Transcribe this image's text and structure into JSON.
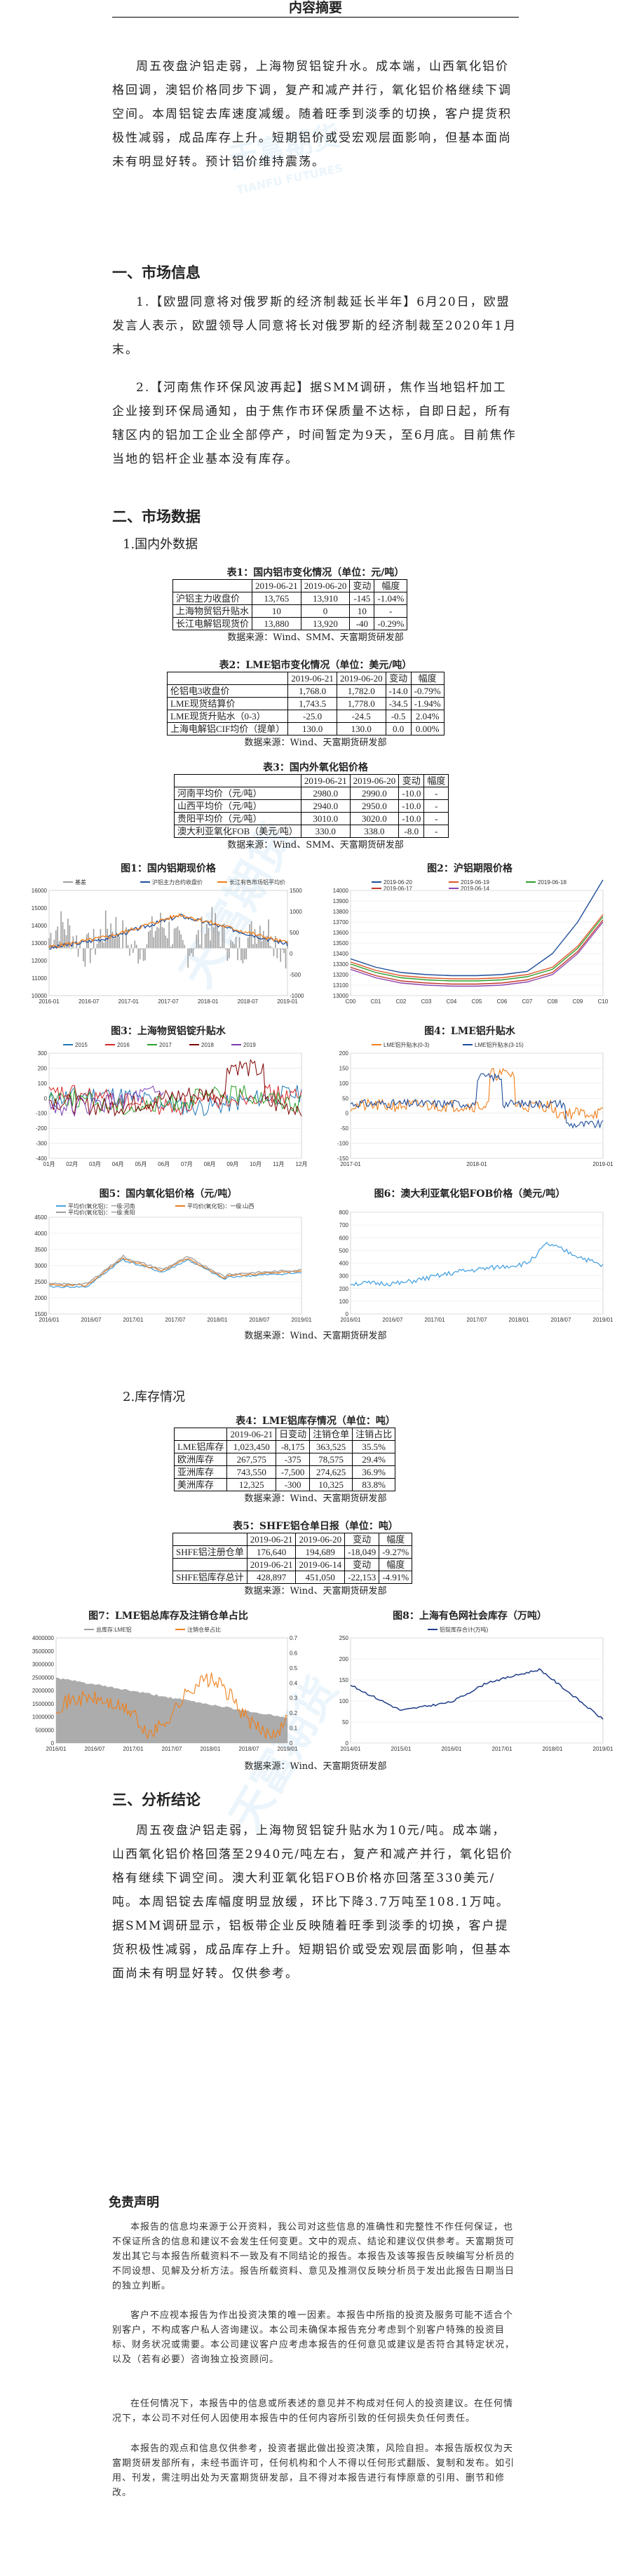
{
  "header": {
    "title": "内容摘要"
  },
  "summary": "周五夜盘沪铝走弱，上海物贸铝锭升水。成本端，山西氧化铝价格回调，澳铝价格同步下调，复产和减产并行，氧化铝价格继续下调空间。本周铝锭去库速度减缓。随着旺季到淡季的切换，客户提货积极性减弱，成品库存上升。短期铝价或受宏观层面影响，但基本面尚未有明显好转。预计铝价维持震荡。",
  "watermark": {
    "brand": "天富期货",
    "en": "TIANFU FUTURES"
  },
  "sec1": {
    "title": "一、市场信息",
    "items": [
      "1.【欧盟同意将对俄罗斯的经济制裁延长半年】6月20日，欧盟发言人表示，欧盟领导人同意将长对俄罗斯的经济制裁至2020年1月末。",
      "2.【河南焦作环保风波再起】据SMM调研，焦作当地铝杆加工企业接到环保局通知，由于焦作市环保质量不达标，自即日起，所有辖区内的铝加工企业全部停产，时间暂定为9天，至6月底。目前焦作当地的铝杆企业基本没有库存。"
    ]
  },
  "sec2": {
    "title": "二、市场数据",
    "sub1": "1.国内外数据",
    "sub2": "2.库存情况"
  },
  "table1": {
    "caption": "表1：国内铝市变化情况（单位：元/吨）",
    "header": [
      "",
      "2019-06-21",
      "2019-06-20",
      "变动",
      "幅度"
    ],
    "rows": [
      [
        "沪铝主力收盘价",
        "13,765",
        "13,910",
        "-145",
        "-1.04%"
      ],
      [
        "上海物贸铝升贴水",
        "10",
        "0",
        "10",
        "-"
      ],
      [
        "长江电解铝现货价",
        "13,880",
        "13,920",
        "-40",
        "-0.29%"
      ]
    ],
    "source": "数据来源：Wind、SMM、天富期货研发部"
  },
  "table2": {
    "caption": "表2：LME铝市变化情况（单位：美元/吨）",
    "header": [
      "",
      "2019-06-21",
      "2019-06-20",
      "变动",
      "幅度"
    ],
    "rows": [
      [
        "伦铝电3收盘价",
        "1,768.0",
        "1,782.0",
        "-14.0",
        "-0.79%"
      ],
      [
        "LME现货结算价",
        "1,743.5",
        "1,778.0",
        "-34.5",
        "-1.94%"
      ],
      [
        "LME现货升贴水（0-3）",
        "-25.0",
        "-24.5",
        "-0.5",
        "2.04%"
      ],
      [
        "上海电解铝CIF均价（提单）",
        "130.0",
        "130.0",
        "0.0",
        "0.00%"
      ]
    ],
    "source": "数据来源：Wind、天富期货研发部"
  },
  "table3": {
    "caption": "表3：国内外氧化铝价格",
    "header": [
      "",
      "2019-06-21",
      "2019-06-20",
      "变动",
      "幅度"
    ],
    "rows": [
      [
        "河南平均价（元/吨）",
        "2980.0",
        "2990.0",
        "-10.0",
        "-"
      ],
      [
        "山西平均价（元/吨）",
        "2940.0",
        "2950.0",
        "-10.0",
        "-"
      ],
      [
        "贵阳平均价（元/吨）",
        "3010.0",
        "3020.0",
        "-10.0",
        "-"
      ],
      [
        "澳大利亚氧化FOB（美元/吨）",
        "330.0",
        "338.0",
        "-8.0",
        "-"
      ]
    ],
    "source": "数据来源：Wind、SMM、天富期货研发部"
  },
  "fig1": {
    "title": "图1：国内铝期现价格",
    "legend": [
      "基差",
      "沪铝主力合约收盘价",
      "长江有色市场铝平均价"
    ],
    "colors": [
      "#9e9e9e",
      "#1f4e9b",
      "#f07f1a"
    ],
    "yleft": [
      "16000",
      "15000",
      "14000",
      "13000",
      "12000",
      "11000",
      "10000"
    ],
    "yright": [
      "1500",
      "1000",
      "500",
      "0",
      "-500",
      "-1000"
    ],
    "xticks": [
      "2016-01",
      "2016-07",
      "2017-01",
      "2017-07",
      "2018-01",
      "2018-07",
      "2019-01"
    ]
  },
  "fig2": {
    "title": "图2：沪铝期限价格",
    "legend": [
      "2019-06-20",
      "2019-06-19",
      "2019-06-18",
      "2019-06-17",
      "2019-06-14"
    ],
    "colors": [
      "#1f4e9b",
      "#e0562b",
      "#2ca02c",
      "#c0392b",
      "#8e44ad"
    ],
    "yticks": [
      "14000",
      "13900",
      "13800",
      "13700",
      "13600",
      "13500",
      "13400",
      "13300",
      "13200",
      "13100",
      "13000"
    ],
    "xticks": [
      "C00",
      "C01",
      "C02",
      "C03",
      "C04",
      "C05",
      "C06",
      "C07",
      "C08",
      "C09",
      "C10"
    ]
  },
  "fig3": {
    "title": "图3：上海物贸铝锭升贴水",
    "legend": [
      "2015",
      "2016",
      "2017",
      "2018",
      "2019"
    ],
    "colors": [
      "#1f77b4",
      "#d62728",
      "#2ca02c",
      "#7f0000",
      "#7b3fb0"
    ],
    "yticks": [
      "300",
      "200",
      "100",
      "0",
      "-100",
      "-200",
      "-300",
      "-400"
    ],
    "xticks": [
      "01月",
      "02月",
      "03月",
      "04月",
      "05月",
      "06月",
      "07月",
      "08月",
      "09月",
      "10月",
      "11月",
      "12月"
    ]
  },
  "fig4": {
    "title": "图4：LME铝升贴水",
    "legend": [
      "LME铝升贴水(0-3)",
      "LME铝升贴水(3-15)"
    ],
    "colors": [
      "#f07f1a",
      "#1f4e9b"
    ],
    "yticks": [
      "200",
      "150",
      "100",
      "50",
      "0",
      "-50",
      "-100",
      "-150"
    ],
    "xticks": [
      "2017-01",
      "2018-01",
      "2019-01"
    ]
  },
  "fig5": {
    "title": "图5：国内氧化铝价格（元/吨）",
    "legend": [
      "平均价(氧化铝)：一级:河南",
      "平均价(氧化铝)：一级:山西",
      "平均价(氧化铝)：一级:贵阳"
    ],
    "colors": [
      "#4aa3e0",
      "#e67e22",
      "#9e9e9e"
    ],
    "yticks": [
      "4500",
      "4000",
      "3500",
      "3000",
      "2500",
      "2000",
      "1500"
    ],
    "xticks": [
      "2016/01",
      "2016/07",
      "2017/01",
      "2017/07",
      "2018/01",
      "2018/07",
      "2019/01"
    ]
  },
  "fig6": {
    "title": "图6：澳大利亚氧化铝FOB价格（美元/吨）",
    "colors": [
      "#4aa3e0"
    ],
    "yticks": [
      "800",
      "700",
      "600",
      "500",
      "400",
      "300",
      "200",
      "100",
      "0"
    ],
    "xticks": [
      "2016/01",
      "2016/07",
      "2017/01",
      "2017/07",
      "2018/01",
      "2018/07",
      "2019/01"
    ]
  },
  "figsrc": [
    "数据来源：Wind、天富期货研发部",
    "数据来源：Wind、天富期货研发部",
    "数据来源：Wind、天富期货研发部"
  ],
  "table4": {
    "caption": "表4：LME铝库存情况（单位：吨）",
    "header": [
      "",
      "2019-06-21",
      "日变动",
      "注销仓单",
      "注销占比"
    ],
    "rows": [
      [
        "LME铝库存",
        "1,023,450",
        "-8,175",
        "363,525",
        "35.5%"
      ],
      [
        "欧洲库存",
        "267,575",
        "-375",
        "78,575",
        "29.4%"
      ],
      [
        "亚洲库存",
        "743,550",
        "-7,500",
        "274,625",
        "36.9%"
      ],
      [
        "美洲库存",
        "12,325",
        "-300",
        "10,325",
        "83.8%"
      ]
    ],
    "source": "数据来源：Wind、天富期货研发部"
  },
  "table5": {
    "caption": "表5：SHFE铝仓单日报（单位：吨）",
    "header1": [
      "",
      "2019-06-21",
      "2019-06-20",
      "变动",
      "幅度"
    ],
    "row1": [
      "SHFE铝注册仓单",
      "176,640",
      "194,689",
      "-18,049",
      "-9.27%"
    ],
    "header2": [
      "",
      "2019-06-21",
      "2019-06-14",
      "变动",
      "幅度"
    ],
    "row2": [
      "SHFE铝库存总计",
      "428,897",
      "451,050",
      "-22,153",
      "-4.91%"
    ],
    "source": "数据来源：Wind、天富期货研发部"
  },
  "fig7": {
    "title": "图7：LME铝总库存及注销仓单占比",
    "legend": [
      "总库存:LME铝",
      "注销仓单占比"
    ],
    "colors": [
      "#9e9e9e",
      "#f07f1a"
    ],
    "yleft": [
      "4000000",
      "3500000",
      "3000000",
      "2500000",
      "2000000",
      "1500000",
      "1000000",
      "500000",
      "0"
    ],
    "yright": [
      "0.7",
      "0.6",
      "0.5",
      "0.4",
      "0.3",
      "0.2",
      "0.1",
      "0"
    ],
    "xticks": [
      "2016/01",
      "2016/07",
      "2017/01",
      "2017/07",
      "2018/01",
      "2018/07",
      "2019/01"
    ]
  },
  "fig8": {
    "title": "图8：上海有色网社会库存（万吨）",
    "legend": [
      "铝锭库存合计(万吨)"
    ],
    "colors": [
      "#1f3c88"
    ],
    "yticks": [
      "250",
      "200",
      "150",
      "100",
      "50",
      "0"
    ],
    "xticks": [
      "2014/01",
      "2015/01",
      "2016/01",
      "2017/01",
      "2018/01",
      "2019/01"
    ]
  },
  "sec3": {
    "title": "三、分析结论",
    "text": "周五夜盘沪铝走弱，上海物贸铝锭升贴水为10元/吨。成本端，山西氧化铝价格回落至2940元/吨左右，复产和减产并行，氧化铝价格有继续下调空间。澳大利亚氧化铝FOB价格亦回落至330美元/吨。本周铝锭去库幅度明显放缓，环比下降3.7万吨至108.1万吨。据SMM调研显示，铝板带企业反映随着旺季到淡季的切换，客户提货积极性减弱，成品库存上升。短期铝价或受宏观层面影响，但基本面尚未有明显好转。仅供参考。"
  },
  "disclaimer": {
    "title": "免责声明",
    "paras": [
      "本报告的信息均来源于公开资料，我公司对这些信息的准确性和完整性不作任何保证，也不保证所含的信息和建议不会发生任何变更。文中的观点、结论和建议仅供参考。天富期货可发出其它与本报告所载资料不一致及有不同结论的报告。本报告及该等报告反映编写分析员的不同设想、见解及分析方法。报告所载资料、意见及推测仅反映分析员于发出此报告日期当日的独立判断。",
      "客户不应视本报告为作出投资决策的唯一因素。本报告中所指的投资及服务可能不适合个别客户，不构成客户私人咨询建议。本公司未确保本报告充分考虑到个别客户特殊的投资目标、财务状况或需要。本公司建议客户应考虑本报告的任何意见或建议是否符合其特定状况，以及（若有必要）咨询独立投资顾问。",
      "在任何情况下，本报告中的信息或所表述的意见并不构成对任何人的投资建议。在任何情况下，本公司不对任何人因使用本报告中的任何内容所引致的任何损失负任何责任。",
      "本报告的观点和信息仅供参考，投资者据此做出投资决策，风险自担。本报告版权仅为天富期货研发部所有，未经书面许可，任何机构和个人不得以任何形式翻版、复制和发布。如引用、刊发，需注明出处为天富期货研发部，且不得对本报告进行有悖原意的引用、删节和修改。"
    ]
  }
}
